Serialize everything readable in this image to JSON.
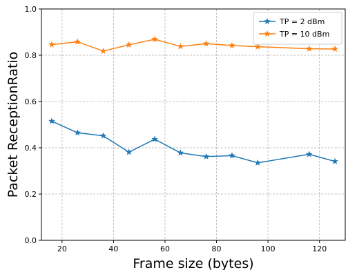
{
  "chart_data": {
    "type": "line",
    "title": "",
    "xlabel": "Frame size (bytes)",
    "ylabel": "Packet ReceptionRatio",
    "xlim": [
      12,
      130
    ],
    "ylim": [
      0.0,
      1.0
    ],
    "xticks": [
      20,
      40,
      60,
      80,
      100,
      120
    ],
    "yticks": [
      0.0,
      0.2,
      0.4,
      0.6,
      0.8,
      1.0
    ],
    "ytick_labels": [
      "0.0",
      "0.2",
      "0.4",
      "0.6",
      "0.8",
      "1.0"
    ],
    "grid": true,
    "legend_position": "top-right",
    "x": [
      16,
      26,
      36,
      46,
      56,
      66,
      76,
      86,
      96,
      116,
      126
    ],
    "series": [
      {
        "name": "TP = 2 dBm",
        "color": "#1f77b4",
        "marker": "star",
        "values": [
          0.515,
          0.465,
          0.452,
          0.381,
          0.437,
          0.378,
          0.362,
          0.366,
          0.335,
          0.372,
          0.341
        ]
      },
      {
        "name": "TP = 10 dBm",
        "color": "#ff7f0e",
        "marker": "star",
        "values": [
          0.846,
          0.858,
          0.818,
          0.845,
          0.869,
          0.838,
          0.85,
          0.842,
          0.837,
          0.828,
          0.827
        ]
      }
    ]
  }
}
